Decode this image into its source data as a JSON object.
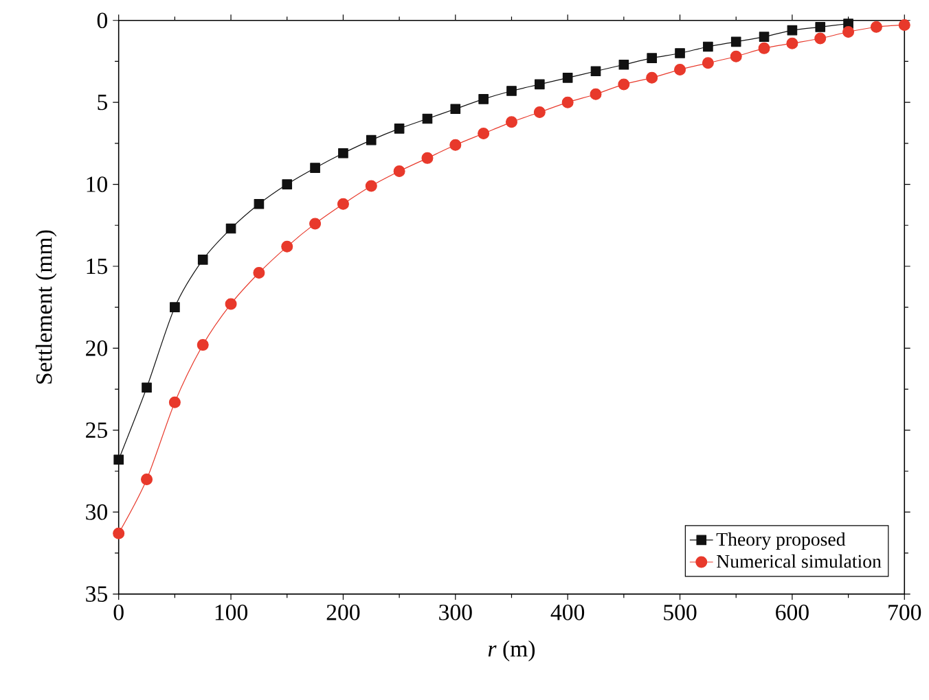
{
  "chart_data": {
    "type": "line",
    "xlabel": "*r* (m)",
    "ylabel": "Settlement (mm)",
    "x": [
      0,
      25,
      50,
      75,
      100,
      125,
      150,
      175,
      200,
      225,
      250,
      275,
      300,
      325,
      350,
      375,
      400,
      425,
      450,
      475,
      500,
      525,
      550,
      575,
      600,
      625,
      650,
      675,
      700
    ],
    "series": [
      {
        "name": "Theory proposed",
        "color": "#111111",
        "marker": "square",
        "values": [
          26.8,
          22.4,
          17.5,
          14.6,
          12.7,
          11.2,
          10.0,
          9.0,
          8.1,
          7.3,
          6.6,
          6.0,
          5.4,
          4.8,
          4.3,
          3.9,
          3.5,
          3.1,
          2.7,
          2.3,
          2.0,
          1.6,
          1.3,
          1.0,
          0.6,
          0.4,
          0.2,
          null,
          null
        ]
      },
      {
        "name": "Numerical simulation",
        "color": "#e8392b",
        "marker": "circle",
        "values": [
          31.3,
          28.0,
          23.3,
          19.8,
          17.3,
          15.4,
          13.8,
          12.4,
          11.2,
          10.1,
          9.2,
          8.4,
          7.6,
          6.9,
          6.2,
          5.6,
          5.0,
          4.5,
          3.9,
          3.5,
          3.0,
          2.6,
          2.2,
          1.7,
          1.4,
          1.1,
          0.7,
          0.4,
          0.28
        ]
      }
    ],
    "xlim": [
      0,
      700
    ],
    "xticks": [
      0,
      100,
      200,
      300,
      400,
      500,
      600,
      700
    ],
    "ylim": [
      35,
      0
    ],
    "yticks": [
      0,
      5,
      10,
      15,
      20,
      25,
      30,
      35
    ],
    "legend": "bottom right",
    "grid": false
  }
}
